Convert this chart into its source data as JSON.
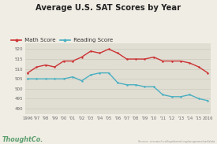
{
  "title": "Average U.S. SAT Scores by Year",
  "years": [
    "1996",
    "'97",
    "'98",
    "'99",
    "'00",
    "'01",
    "'02",
    "'03",
    "'04",
    "'05",
    "'06",
    "'07",
    "'08",
    "'09",
    "'10",
    "'11",
    "'12",
    "'13",
    "'14",
    "'15",
    "2016"
  ],
  "math_scores": [
    508,
    511,
    512,
    511,
    514,
    514,
    516,
    519,
    518,
    520,
    518,
    515,
    515,
    515,
    516,
    514,
    514,
    514,
    513,
    511,
    508
  ],
  "reading_scores": [
    505,
    505,
    505,
    505,
    505,
    506,
    504,
    507,
    508,
    508,
    503,
    502,
    502,
    501,
    501,
    497,
    496,
    496,
    497,
    495,
    494
  ],
  "math_color": "#cc3333",
  "reading_color": "#4ab0c1",
  "bg_color": "#f0ede4",
  "plot_bg_color": "#e0ddd3",
  "title_color": "#222222",
  "ylabel_ticks": [
    490,
    495,
    500,
    505,
    510,
    515,
    520
  ],
  "ylim": [
    487,
    523
  ],
  "source_text": "Source: research.collegeboard.org/programs/sat/data",
  "logo_text": "ThoughtCo.",
  "logo_color": "#5b9e6e"
}
